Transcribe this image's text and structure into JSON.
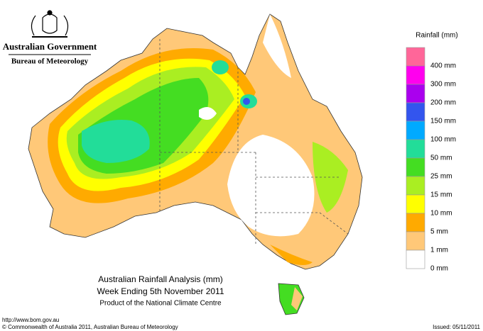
{
  "header": {
    "government": "Australian Government",
    "agency": "Bureau of Meteorology"
  },
  "legend": {
    "title": "Rainfall (mm)",
    "colors": [
      "#ff6699",
      "#ff00ee",
      "#aa00ee",
      "#3355ee",
      "#00aaff",
      "#22dd99",
      "#44dd22",
      "#aaee22",
      "#ffff00",
      "#ffaa00",
      "#ffc878",
      "#ffffff"
    ],
    "labels": [
      "400 mm",
      "300 mm",
      "200 mm",
      "150 mm",
      "100 mm",
      "50 mm",
      "25 mm",
      "15 mm",
      "10 mm",
      "5 mm",
      "1 mm",
      "0 mm"
    ]
  },
  "title": {
    "line1": "Australian Rainfall Analysis (mm)",
    "line2": "Week Ending 5th November 2011",
    "line3": "Product of the National Climate Centre"
  },
  "footer": {
    "url": "http://www.bom.gov.au",
    "copyright": "© Commonwealth of Australia 2011, Australian Bureau of Meteorology",
    "issued": "Issued: 05/11/2011"
  }
}
